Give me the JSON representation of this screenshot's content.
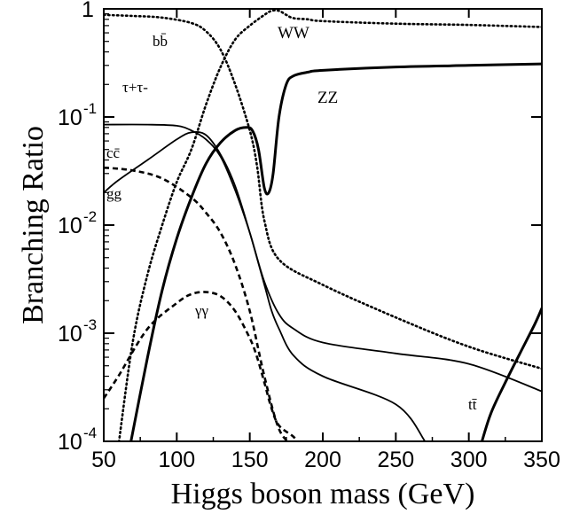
{
  "chart_data": {
    "type": "line",
    "title": "",
    "xlabel": "Higgs boson mass (GeV)",
    "ylabel": "Branching Ratio",
    "xlim": [
      50,
      350
    ],
    "ylim": [
      0.0001,
      1
    ],
    "yscale": "log",
    "x_ticks": [
      "50",
      "100",
      "150",
      "200",
      "250",
      "300",
      "350"
    ],
    "y_ticks": [
      {
        "base": "1",
        "exp": ""
      },
      {
        "base": "10",
        "exp": "-1"
      },
      {
        "base": "10",
        "exp": "-2"
      },
      {
        "base": "10",
        "exp": "-3"
      },
      {
        "base": "10",
        "exp": "-4"
      }
    ],
    "grid": false,
    "legend": "none",
    "series": [
      {
        "label": "bb̄",
        "style": "dotted",
        "points": [
          [
            50,
            0.88
          ],
          [
            70,
            0.86
          ],
          [
            90,
            0.83
          ],
          [
            110,
            0.74
          ],
          [
            120,
            0.62
          ],
          [
            130,
            0.42
          ],
          [
            140,
            0.2
          ],
          [
            150,
            0.075
          ],
          [
            155,
            0.035
          ],
          [
            160,
            0.011
          ],
          [
            170,
            0.0048
          ],
          [
            200,
            0.0028
          ],
          [
            250,
            0.0014
          ],
          [
            300,
            0.00075
          ],
          [
            350,
            0.00047
          ]
        ]
      },
      {
        "label": "WW",
        "style": "dotted",
        "points": [
          [
            60,
            9e-05
          ],
          [
            70,
            0.00085
          ],
          [
            80,
            0.0035
          ],
          [
            90,
            0.01
          ],
          [
            100,
            0.025
          ],
          [
            110,
            0.05
          ],
          [
            120,
            0.13
          ],
          [
            130,
            0.29
          ],
          [
            140,
            0.52
          ],
          [
            150,
            0.7
          ],
          [
            160,
            0.88
          ],
          [
            165,
            0.96
          ],
          [
            170,
            0.96
          ],
          [
            175,
            0.88
          ],
          [
            180,
            0.82
          ],
          [
            190,
            0.8
          ],
          [
            200,
            0.77
          ],
          [
            250,
            0.73
          ],
          [
            300,
            0.71
          ],
          [
            350,
            0.68
          ]
        ]
      },
      {
        "label": "ZZ",
        "style": "solid-thick",
        "points": [
          [
            68,
            9e-05
          ],
          [
            80,
            0.0006
          ],
          [
            90,
            0.0025
          ],
          [
            100,
            0.0075
          ],
          [
            110,
            0.018
          ],
          [
            120,
            0.037
          ],
          [
            130,
            0.058
          ],
          [
            140,
            0.075
          ],
          [
            148,
            0.08
          ],
          [
            152,
            0.074
          ],
          [
            156,
            0.05
          ],
          [
            160,
            0.022
          ],
          [
            163,
            0.02
          ],
          [
            166,
            0.03
          ],
          [
            170,
            0.1
          ],
          [
            175,
            0.2
          ],
          [
            180,
            0.24
          ],
          [
            190,
            0.26
          ],
          [
            200,
            0.27
          ],
          [
            250,
            0.29
          ],
          [
            300,
            0.3
          ],
          [
            350,
            0.31
          ]
        ]
      },
      {
        "label": "τ+τ-",
        "style": "solid",
        "points": [
          [
            50,
            0.085
          ],
          [
            80,
            0.085
          ],
          [
            100,
            0.083
          ],
          [
            110,
            0.075
          ],
          [
            120,
            0.062
          ],
          [
            130,
            0.043
          ],
          [
            140,
            0.021
          ],
          [
            150,
            0.0085
          ],
          [
            160,
            0.003
          ],
          [
            170,
            0.0015
          ],
          [
            180,
            0.0011
          ],
          [
            200,
            0.00082
          ],
          [
            250,
            0.00065
          ],
          [
            300,
            0.00052
          ],
          [
            350,
            0.00029
          ]
        ]
      },
      {
        "label": "cc̄",
        "style": "solid",
        "points": [
          [
            50,
            0.02
          ],
          [
            60,
            0.026
          ],
          [
            80,
            0.04
          ],
          [
            100,
            0.062
          ],
          [
            110,
            0.072
          ],
          [
            120,
            0.068
          ],
          [
            130,
            0.045
          ],
          [
            140,
            0.023
          ],
          [
            150,
            0.0085
          ],
          [
            160,
            0.0028
          ],
          [
            165,
            0.0016
          ],
          [
            170,
            0.0011
          ],
          [
            180,
            0.00062
          ],
          [
            200,
            0.0004
          ],
          [
            250,
            0.00022
          ],
          [
            270,
            0.0001
          ]
        ]
      },
      {
        "label": "gg",
        "style": "dashed",
        "points": [
          [
            50,
            0.034
          ],
          [
            70,
            0.032
          ],
          [
            90,
            0.027
          ],
          [
            110,
            0.018
          ],
          [
            120,
            0.013
          ],
          [
            130,
            0.0085
          ],
          [
            140,
            0.0043
          ],
          [
            150,
            0.0016
          ],
          [
            160,
            0.0004
          ],
          [
            170,
            0.00013
          ],
          [
            180,
            9e-05
          ]
        ]
      },
      {
        "label": "γγ",
        "style": "dashed",
        "points": [
          [
            50,
            0.00025
          ],
          [
            60,
            0.0004
          ],
          [
            80,
            0.0011
          ],
          [
            100,
            0.0019
          ],
          [
            110,
            0.0023
          ],
          [
            120,
            0.0024
          ],
          [
            130,
            0.0022
          ],
          [
            140,
            0.0016
          ],
          [
            150,
            0.0009
          ],
          [
            155,
            0.0006
          ],
          [
            160,
            0.00035
          ],
          [
            165,
            0.0002
          ],
          [
            170,
            0.00014
          ],
          [
            180,
            0.00011
          ],
          [
            185,
            9e-05
          ]
        ]
      },
      {
        "label": "tt̄",
        "style": "solid-thick",
        "points": [
          [
            308,
            9e-05
          ],
          [
            315,
            0.00018
          ],
          [
            325,
            0.00035
          ],
          [
            335,
            0.00065
          ],
          [
            345,
            0.0012
          ],
          [
            350,
            0.0017
          ]
        ]
      }
    ]
  }
}
